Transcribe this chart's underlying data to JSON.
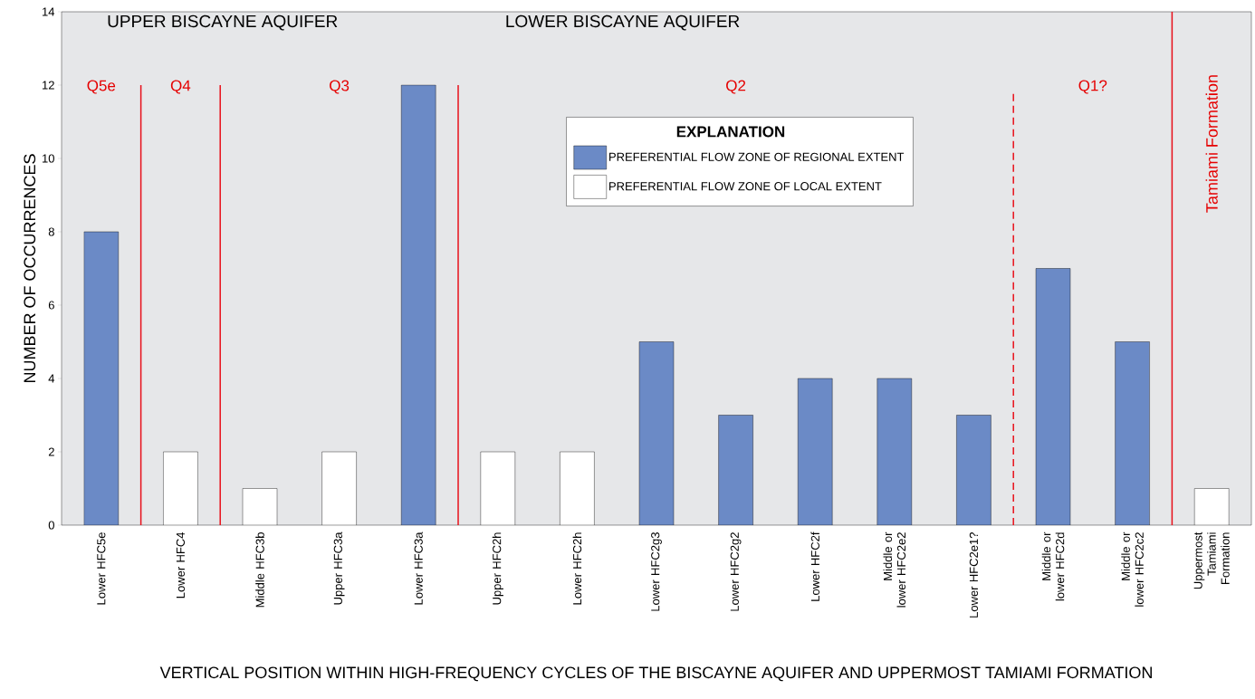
{
  "chart_data": {
    "type": "bar",
    "xlabel": "VERTICAL POSITION WITHIN HIGH-FREQUENCY CYCLES OF THE BISCAYNE AQUIFER AND UPPERMOST TAMIAMI FORMATION",
    "ylabel": "NUMBER OF OCCURRENCES",
    "legend_title": "EXPLANATION",
    "categories": [
      "Lower HFC5e",
      "Lower HFC4",
      "Middle HFC3b",
      "Upper HFC3a",
      "Lower HFC3a",
      "Upper HFC2h",
      "Lower HFC2h",
      "Lower HFC2g3",
      "Lower HFC2g2",
      "Lower HFC2f",
      "Middle or lower HFC2e2",
      "Lower HFC2e1?",
      "Middle or lower HFC2d",
      "Middle or lower HFC2c2",
      "Uppermost Tamiami Formation"
    ],
    "series": [
      {
        "name": "PREFERENTIAL FLOW ZONE OF REGIONAL EXTENT",
        "color": "#6b8ac6",
        "values": [
          8,
          null,
          null,
          null,
          12,
          null,
          null,
          5,
          3,
          4,
          4,
          3,
          7,
          5,
          null
        ]
      },
      {
        "name": "PREFERENTIAL FLOW ZONE OF LOCAL EXTENT",
        "color": "#ffffff",
        "values": [
          null,
          2,
          1,
          2,
          null,
          2,
          2,
          null,
          null,
          null,
          null,
          null,
          null,
          null,
          1
        ]
      }
    ],
    "ylim": [
      0,
      14
    ],
    "yticks": [
      0,
      2,
      4,
      6,
      8,
      10,
      12,
      14
    ],
    "annotations": [
      "UPPER BISCAYNE AQUIFER",
      "LOWER BISCAYNE AQUIFER",
      "Q5e",
      "Q4",
      "Q3",
      "Q2",
      "Q1?",
      "Tamiami Formation"
    ],
    "legend": "top",
    "grid": false
  }
}
